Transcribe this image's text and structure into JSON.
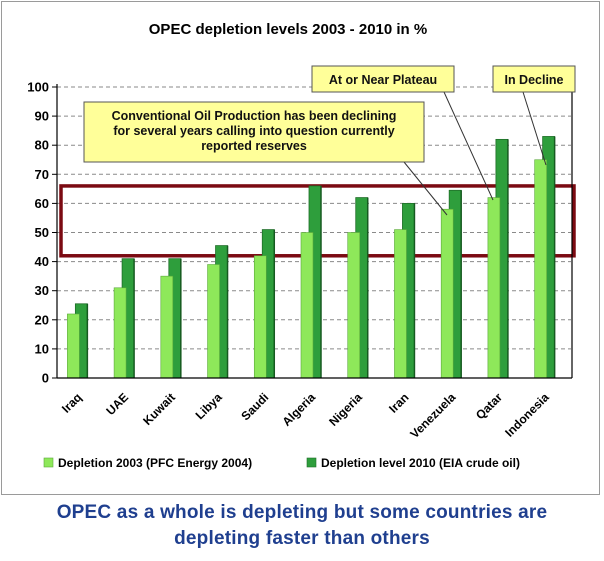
{
  "chart_data": {
    "type": "bar",
    "title": "OPEC depletion levels 2003 - 2010 in %",
    "categories": [
      "Iraq",
      "UAE",
      "Kuwait",
      "Libya",
      "Saudi",
      "Algeria",
      "Nigeria",
      "Iran",
      "Venezuela",
      "Qatar",
      "Indonesia"
    ],
    "series": [
      {
        "name": "Depletion 2003 (PFC Energy 2004)",
        "color": "#8ee85a",
        "values": [
          22,
          31,
          35,
          39,
          42,
          50,
          50,
          51,
          58,
          62,
          75
        ]
      },
      {
        "name": "Depletion level 2010 (EIA crude oil)",
        "color": "#2e9e3c",
        "values": [
          25.5,
          41,
          41,
          45.5,
          51,
          66,
          62,
          60,
          64.5,
          82,
          83
        ]
      }
    ],
    "ylim": [
      0,
      100
    ],
    "yticks": [
      0,
      10,
      20,
      30,
      40,
      50,
      60,
      70,
      80,
      90,
      100
    ],
    "grid": true,
    "legend_position": "bottom",
    "highlight_band": [
      42,
      66
    ],
    "annotations": {
      "conventional": "Conventional Oil Production has been declining for several years calling into question currently reported reserves",
      "plateau": "At or Near Plateau",
      "decline": "In Decline"
    }
  },
  "caption": {
    "line1": "OPEC as a whole is depleting but some countries are",
    "line2": "depleting faster than others"
  },
  "colors": {
    "band": "#7b0a12",
    "callout_fill": "#ffff99",
    "caption": "#1f3f8f"
  }
}
